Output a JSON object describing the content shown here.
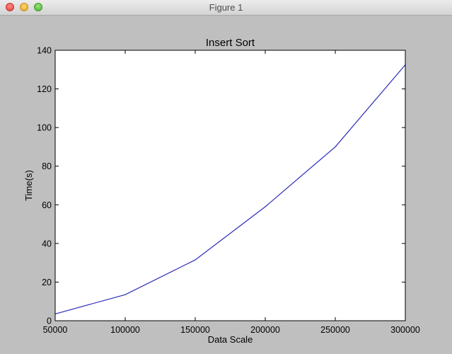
{
  "window": {
    "title": "Figure 1"
  },
  "chart_data": {
    "type": "line",
    "title": "Insert Sort",
    "xlabel": "Data Scale",
    "ylabel": "Time(s)",
    "xlim": [
      50000,
      300000
    ],
    "ylim": [
      0,
      140
    ],
    "x_ticks": [
      50000,
      100000,
      150000,
      200000,
      250000,
      300000
    ],
    "y_ticks": [
      0,
      20,
      40,
      60,
      80,
      100,
      120,
      140
    ],
    "x_tick_labels": [
      "50000",
      "100000",
      "150000",
      "200000",
      "250000",
      "300000"
    ],
    "y_tick_labels": [
      "0",
      "20",
      "40",
      "60",
      "80",
      "100",
      "120",
      "140"
    ],
    "grid": false,
    "series": [
      {
        "color": "#2b2bb8",
        "x": [
          50000,
          100000,
          150000,
          200000,
          250000,
          300000
        ],
        "y": [
          3.5,
          13.5,
          31.5,
          59,
          90,
          132.5
        ]
      }
    ]
  }
}
